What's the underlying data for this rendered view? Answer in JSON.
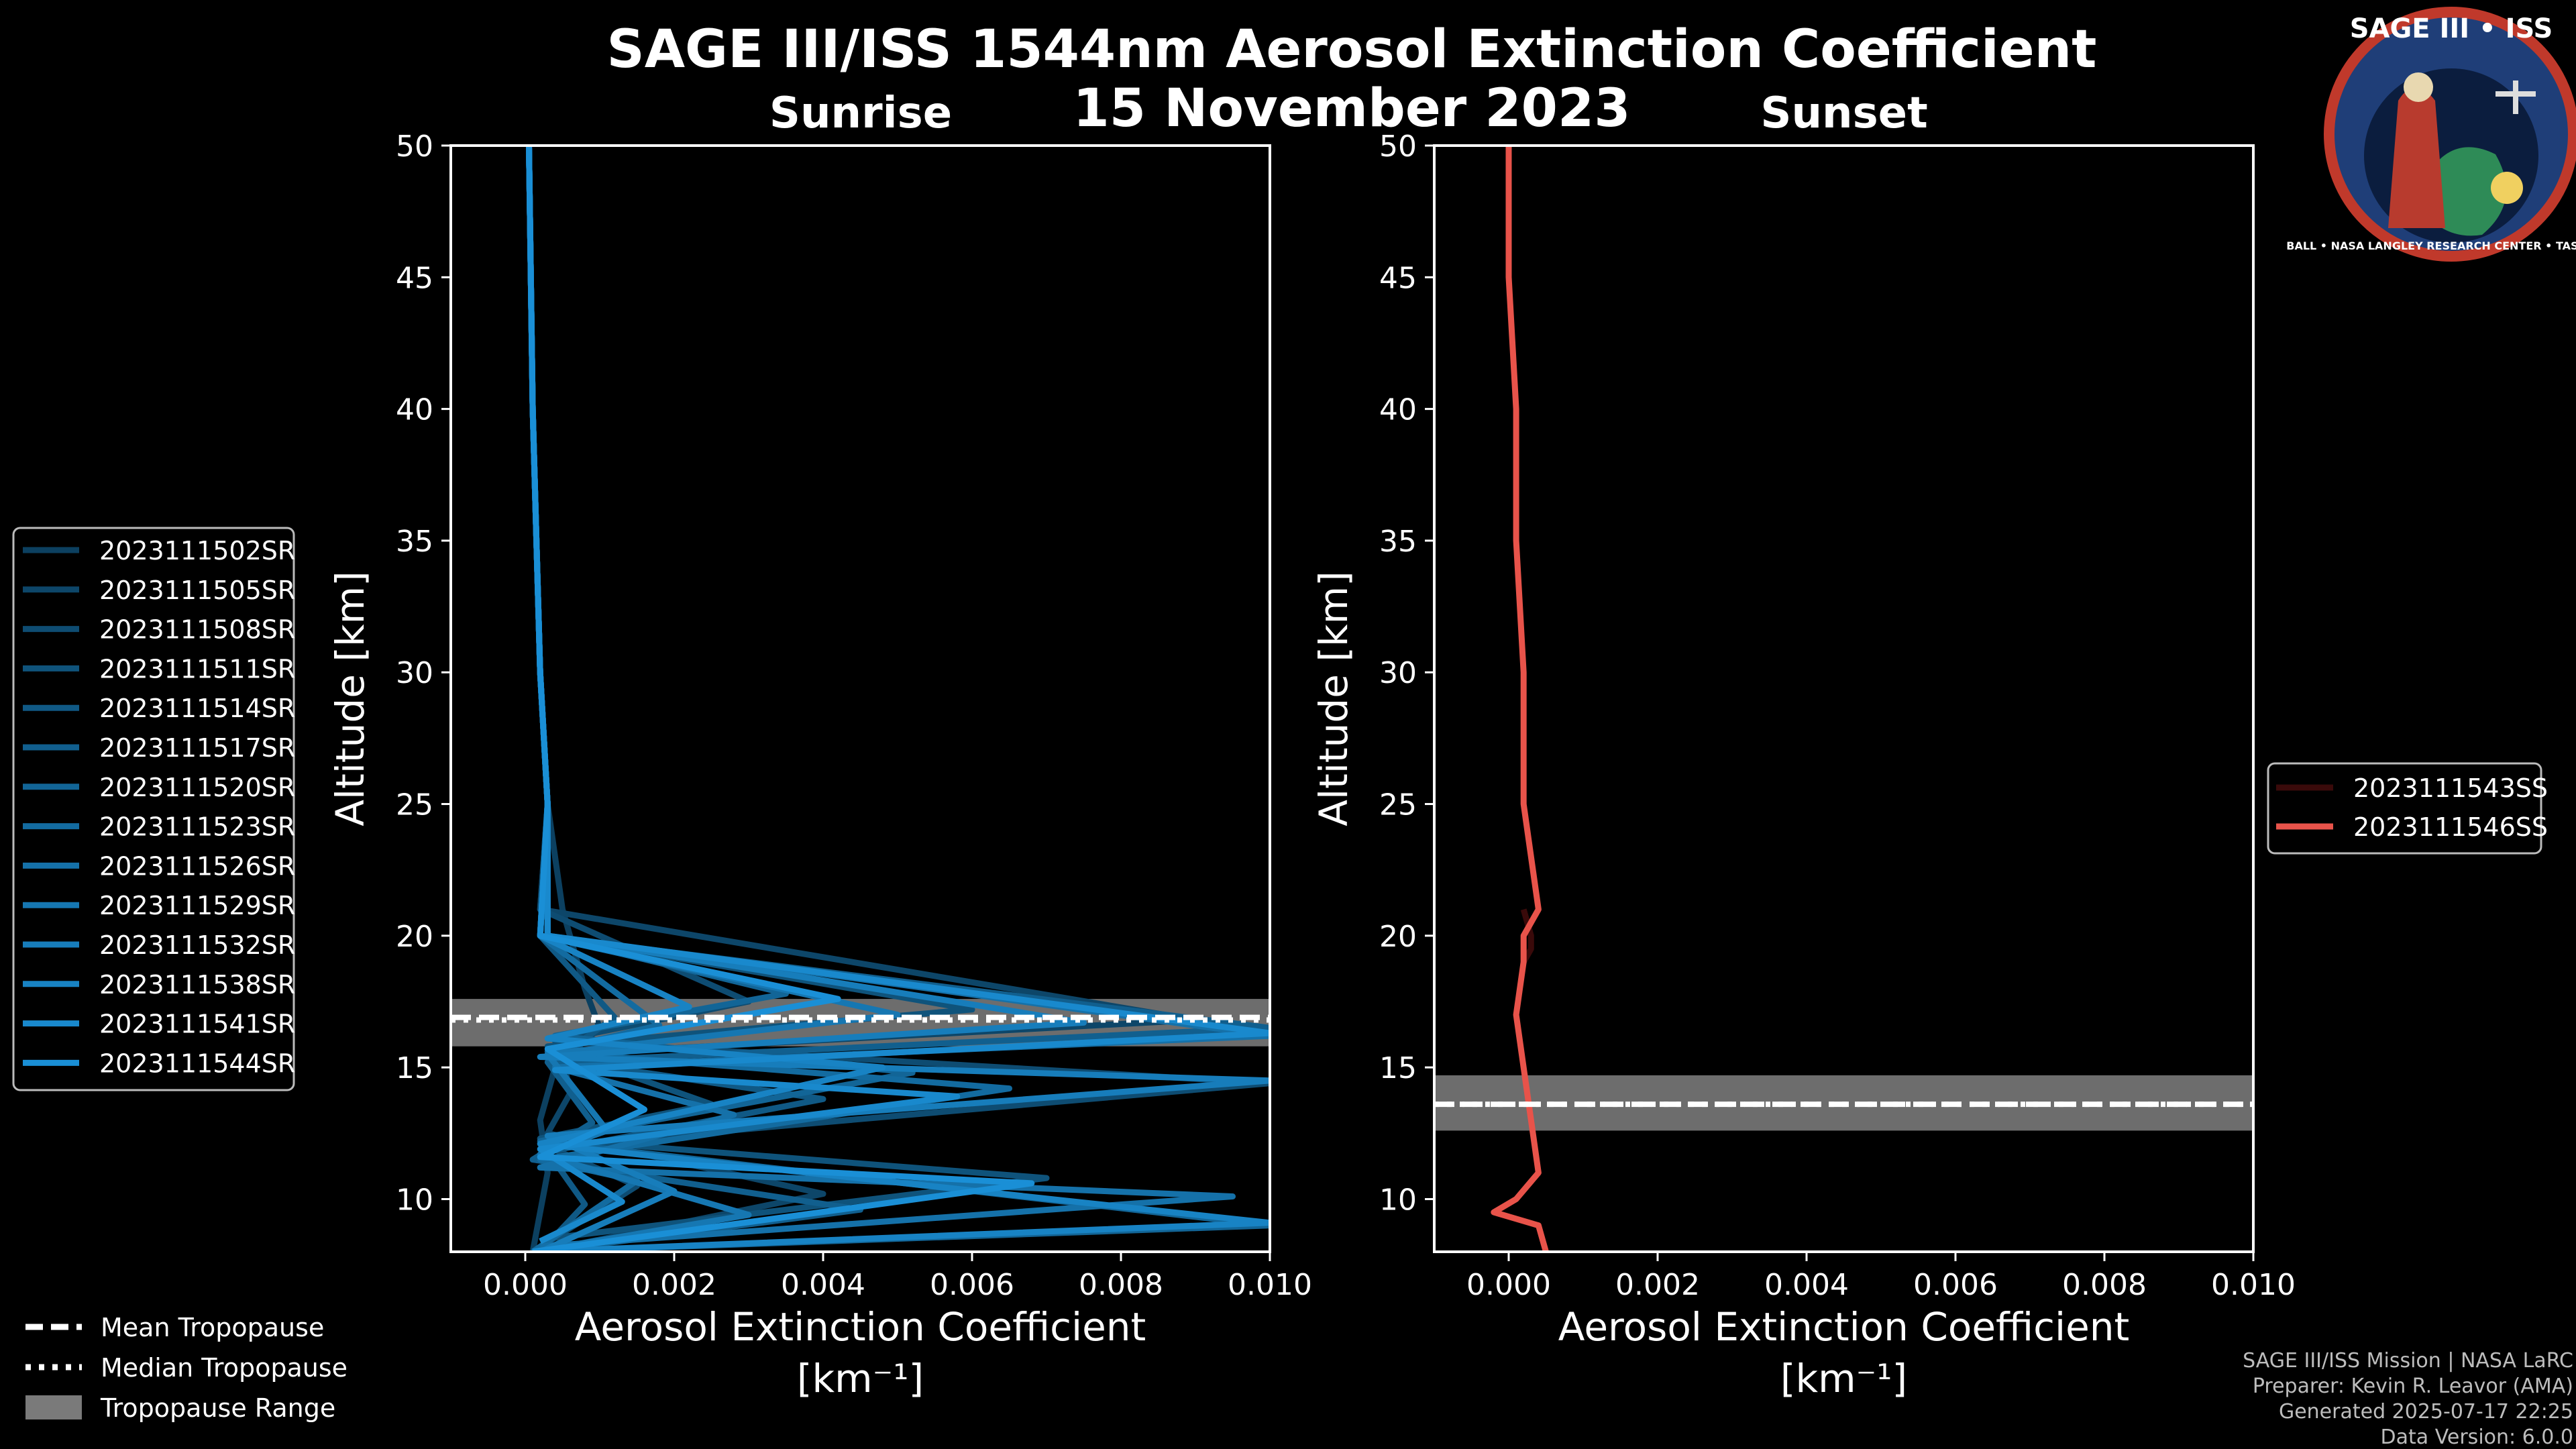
{
  "title": "SAGE III/ISS 1544nm Aerosol Extinction Coefficient",
  "date": "15 November 2023",
  "logo": {
    "text": "SAGE III • ISS",
    "ring": "BALL • NASA LANGLEY RESEARCH CENTER • TAS • ESA"
  },
  "footer": {
    "line1": "SAGE III/ISS Mission | NASA LaRC",
    "line2": "Preparer: Kevin R. Leavor (AMA)",
    "line3": "Generated 2025-07-17 22:25",
    "line4": "Data Version: 6.0.0"
  },
  "tropo_legend": {
    "mean": "Mean Tropopause",
    "median": "Median Tropopause",
    "range": "Tropopause Range"
  },
  "colors": {
    "sunrise": "#1a8fd6",
    "sunset": "#e8534a",
    "band": "#808080"
  },
  "chart_data": [
    {
      "type": "line",
      "title": "Sunrise",
      "xlabel": "Aerosol Extinction Coefficient",
      "xunit": "[km⁻¹]",
      "ylabel": "Altitude [km]",
      "xlim": [
        -0.001,
        0.01
      ],
      "ylim": [
        8,
        50
      ],
      "xticks": [
        "0.000",
        "0.002",
        "0.004",
        "0.006",
        "0.008",
        "0.010"
      ],
      "xtick_values": [
        0,
        0.002,
        0.004,
        0.006,
        0.008,
        0.01
      ],
      "yticks": [
        10,
        15,
        20,
        25,
        30,
        35,
        40,
        45,
        50
      ],
      "tropopause": {
        "mean": 16.9,
        "median": 16.8,
        "range": [
          15.8,
          17.6
        ]
      },
      "series": [
        {
          "name": "2023111502SR",
          "x": [
            5e-05,
            0.0001,
            0.0002,
            0.0003,
            0.0005,
            0.0008,
            0.001,
            0.0004,
            0.0002,
            0.0003,
            0.0002,
            0.0001
          ],
          "y": [
            50,
            40,
            30,
            25,
            21,
            18,
            16.5,
            15,
            13,
            11,
            9.5,
            8
          ]
        },
        {
          "name": "2023111505SR",
          "x": [
            5e-05,
            0.0001,
            0.0002,
            0.0003,
            0.0002,
            0.009,
            0.0005,
            0.0006,
            0.0003,
            0.004,
            0.0002
          ],
          "y": [
            50,
            40,
            30,
            25,
            21,
            16.8,
            15.5,
            14,
            12.5,
            10.2,
            8
          ]
        },
        {
          "name": "2023111508SR",
          "x": [
            5e-05,
            0.0001,
            0.0002,
            0.0003,
            0.0002,
            0.003,
            0.0004,
            0.01,
            0.0003,
            0.0015,
            0.0001
          ],
          "y": [
            50,
            40,
            30,
            25,
            21,
            17.5,
            16,
            14.4,
            12,
            10.5,
            8
          ]
        },
        {
          "name": "2023111511SR",
          "x": [
            5e-05,
            0.0001,
            0.0002,
            0.0003,
            0.0003,
            0.006,
            0.0003,
            0.0025,
            0.0002,
            0.007,
            0.0003
          ],
          "y": [
            50,
            40,
            30,
            25,
            20,
            17.2,
            15.8,
            13.6,
            12.3,
            10.8,
            8.5
          ]
        },
        {
          "name": "2023111514SR",
          "x": [
            5e-05,
            0.0001,
            0.0002,
            0.0003,
            0.0002,
            0.0012,
            0.0004,
            0.004,
            0.0003,
            0.0008,
            0.0002
          ],
          "y": [
            50,
            40,
            30,
            25,
            20,
            16.9,
            15.3,
            13.8,
            11.8,
            9.8,
            8
          ]
        },
        {
          "name": "2023111517SR",
          "x": [
            5e-05,
            0.0001,
            0.0002,
            0.0003,
            0.0002,
            0.01,
            0.0003,
            0.0009,
            0.0001,
            0.0045,
            0.0002
          ],
          "y": [
            50,
            40,
            30,
            25,
            20,
            16.5,
            15.2,
            12.9,
            11.5,
            9.6,
            8
          ]
        },
        {
          "name": "2023111520SR",
          "x": [
            5e-05,
            0.0001,
            0.0002,
            0.0003,
            0.0003,
            0.0035,
            0.0004,
            0.0052,
            0.0002,
            0.01,
            0.0001
          ],
          "y": [
            50,
            40,
            30,
            25,
            20,
            17.8,
            16.2,
            14.8,
            12.2,
            9,
            8
          ]
        },
        {
          "name": "2023111523SR",
          "x": [
            5e-05,
            0.0001,
            0.0002,
            0.0003,
            0.0002,
            0.0018,
            0.0003,
            0.0065,
            0.0002,
            0.0015,
            0.0001
          ],
          "y": [
            50,
            40,
            30,
            25,
            20,
            16.6,
            15.6,
            14.2,
            11.5,
            10.7,
            8
          ]
        },
        {
          "name": "2023111526SR",
          "x": [
            5e-05,
            0.0001,
            0.0002,
            0.0003,
            0.0003,
            0.01,
            0.0004,
            0.0028,
            0.0002,
            0.0095,
            0.0002
          ],
          "y": [
            50,
            40,
            30,
            25,
            20,
            16.2,
            15,
            13.2,
            11.2,
            10.1,
            8.2
          ]
        },
        {
          "name": "2023111529SR",
          "x": [
            5e-05,
            0.0001,
            0.0002,
            0.0003,
            0.0002,
            0.005,
            0.0003,
            0.0011,
            0.0002,
            0.003,
            0.0001
          ],
          "y": [
            50,
            40,
            30,
            25,
            20,
            17,
            15.5,
            12.6,
            11.7,
            9.4,
            8
          ]
        },
        {
          "name": "2023111532SR",
          "x": [
            5e-05,
            0.0001,
            0.0002,
            0.0003,
            0.0003,
            0.0075,
            0.0002,
            0.01,
            0.0003,
            0.002,
            0.0002
          ],
          "y": [
            50,
            40,
            30,
            25,
            20,
            16.7,
            15.4,
            14.5,
            12.4,
            10.3,
            8
          ]
        },
        {
          "name": "2023111538SR",
          "x": [
            5e-05,
            0.0001,
            0.0002,
            0.0003,
            0.0002,
            0.0022,
            0.0003,
            0.0048,
            0.0002,
            0.01,
            0.0001
          ],
          "y": [
            50,
            40,
            30,
            25,
            20,
            17.3,
            16.1,
            15,
            12.1,
            9.1,
            8
          ]
        },
        {
          "name": "2023111541SR",
          "x": [
            5e-05,
            0.0001,
            0.0002,
            0.0003,
            0.0003,
            0.01,
            0.0004,
            0.0058,
            0.0002,
            0.0013,
            0.0002
          ],
          "y": [
            50,
            40,
            30,
            25,
            20,
            16.3,
            14.9,
            13.9,
            11.9,
            9.9,
            8.4
          ]
        },
        {
          "name": "2023111544SR",
          "x": [
            5e-05,
            0.0001,
            0.0002,
            0.0003,
            0.0002,
            0.0042,
            0.0003,
            0.0016,
            0.0002,
            0.0068,
            0.0001
          ],
          "y": [
            50,
            40,
            30,
            25,
            20,
            17.6,
            15.7,
            13.4,
            11.6,
            10.6,
            8
          ]
        }
      ]
    },
    {
      "type": "line",
      "title": "Sunset",
      "xlabel": "Aerosol Extinction Coefficient",
      "xunit": "[km⁻¹]",
      "ylabel": "Altitude [km]",
      "xlim": [
        -0.001,
        0.01
      ],
      "ylim": [
        8,
        50
      ],
      "xticks": [
        "0.000",
        "0.002",
        "0.004",
        "0.006",
        "0.008",
        "0.010"
      ],
      "xtick_values": [
        0,
        0.002,
        0.004,
        0.006,
        0.008,
        0.01
      ],
      "yticks": [
        10,
        15,
        20,
        25,
        30,
        35,
        40,
        45,
        50
      ],
      "tropopause": {
        "mean": 13.6,
        "median": 13.6,
        "range": [
          12.6,
          14.7
        ]
      },
      "series": [
        {
          "name": "2023111543SS",
          "x": [
            0.0002,
            0.0003,
            0.0003,
            0.0002
          ],
          "y": [
            21,
            20,
            19.5,
            19
          ],
          "color": "#3a0a0a"
        },
        {
          "name": "2023111546SS",
          "x": [
            0.0,
            0.0,
            0.0001,
            0.0001,
            0.0002,
            0.0002,
            0.0004,
            0.0002,
            0.0002,
            0.0001,
            0.0002,
            0.0004,
            0.0001,
            -0.0002,
            0.0004,
            0.0005
          ],
          "y": [
            50,
            45,
            40,
            35,
            30,
            25,
            21,
            20,
            19,
            17,
            15,
            11,
            10,
            9.5,
            9,
            8
          ]
        }
      ]
    }
  ]
}
